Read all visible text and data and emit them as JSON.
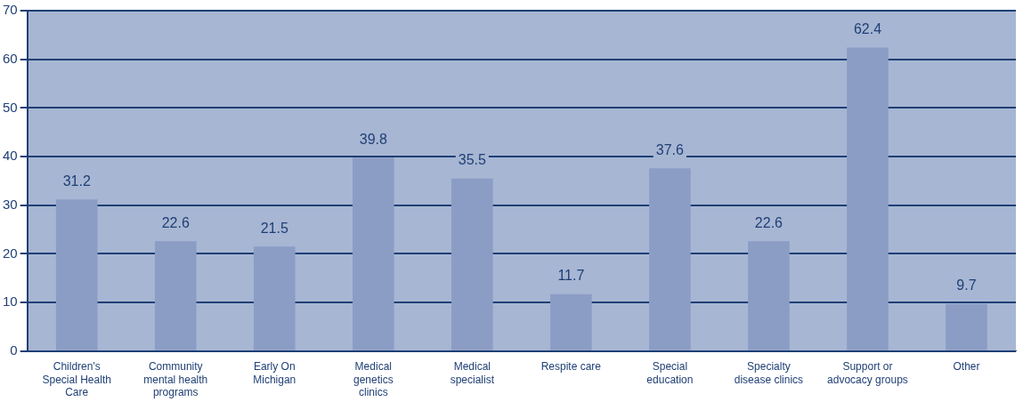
{
  "chart_data": {
    "type": "bar",
    "categories": [
      "Children's Special Health Care",
      "Community mental health programs",
      "Early On Michigan",
      "Medical genetics clinics",
      "Medical specialist",
      "Respite care",
      "Special education",
      "Specialty disease clinics",
      "Support or advocacy groups",
      "Other"
    ],
    "values": [
      31.2,
      22.6,
      21.5,
      39.8,
      35.5,
      11.7,
      37.6,
      22.6,
      62.4,
      9.7
    ],
    "color": "#8c9dc5",
    "ylim": [
      0,
      70
    ],
    "yticks": [
      0,
      10,
      20,
      30,
      40,
      50,
      60,
      70
    ],
    "grid": "y",
    "legend": false,
    "data_labels": true
  }
}
